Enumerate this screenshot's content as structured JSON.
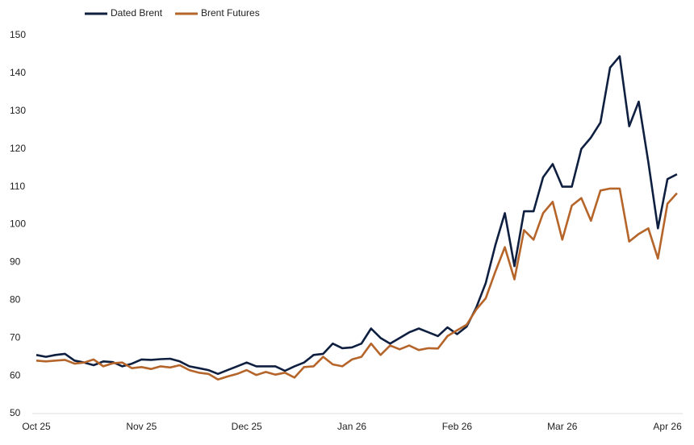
{
  "chart_data": {
    "type": "line",
    "categories": [
      "Oct 25",
      null,
      null,
      null,
      null,
      null,
      null,
      null,
      null,
      null,
      null,
      "Nov 25",
      null,
      null,
      null,
      null,
      null,
      null,
      null,
      null,
      null,
      null,
      "Dec 25",
      null,
      null,
      null,
      null,
      null,
      null,
      null,
      null,
      null,
      null,
      "Jan 26",
      null,
      null,
      null,
      null,
      null,
      null,
      null,
      null,
      null,
      null,
      "Feb 26",
      null,
      null,
      null,
      null,
      null,
      null,
      null,
      null,
      null,
      null,
      "Mar 26",
      null,
      null,
      null,
      null,
      null,
      null,
      null,
      null,
      null,
      null,
      "Apr 26",
      null
    ],
    "series": [
      {
        "name": "Dated Brent",
        "color": "#0e1f40",
        "values": [
          65.5,
          65,
          65.5,
          65.8,
          64,
          63.5,
          62.8,
          63.8,
          63.6,
          62.5,
          63.2,
          64.3,
          64.2,
          64.4,
          64.5,
          63.8,
          62.5,
          62,
          61.5,
          60.5,
          61.5,
          62.5,
          63.5,
          62.5,
          62.5,
          62.5,
          61.3,
          62.5,
          63.5,
          65.5,
          65.8,
          68.5,
          67.3,
          67.5,
          68.5,
          72.5,
          70,
          68.5,
          70,
          71.5,
          72.5,
          71.5,
          70.5,
          72.8,
          71,
          73,
          78,
          84.5,
          94.5,
          103,
          89,
          103.5,
          103.5,
          112.5,
          116,
          110,
          110,
          120,
          123,
          127,
          141.5,
          144.5,
          126,
          132.5,
          116.5,
          99,
          112,
          113.3
        ]
      },
      {
        "name": "Brent Futures",
        "color": "#b5652a",
        "values": [
          64,
          63.8,
          64,
          64.2,
          63.2,
          63.5,
          64.3,
          62.5,
          63.3,
          63.5,
          62,
          62.3,
          61.8,
          62.5,
          62.2,
          62.8,
          61.5,
          60.8,
          60.5,
          59,
          59.8,
          60.5,
          61.5,
          60.2,
          61,
          60.3,
          60.8,
          59.5,
          62.3,
          62.5,
          65,
          63,
          62.5,
          64.3,
          65,
          68.5,
          65.5,
          68,
          67,
          68,
          66.8,
          67.3,
          67.2,
          70.5,
          72,
          73.5,
          77.5,
          80.5,
          87.5,
          94,
          85.5,
          98.5,
          96,
          103,
          106,
          96,
          105,
          107,
          101,
          109,
          109.5,
          109.5,
          95.5,
          97.5,
          99,
          91,
          105.5,
          108.3
        ]
      }
    ],
    "ylim": [
      50,
      150
    ],
    "yticks": [
      50,
      60,
      70,
      80,
      90,
      100,
      110,
      120,
      130,
      140,
      150
    ],
    "grid": false,
    "legend": "top-left"
  }
}
